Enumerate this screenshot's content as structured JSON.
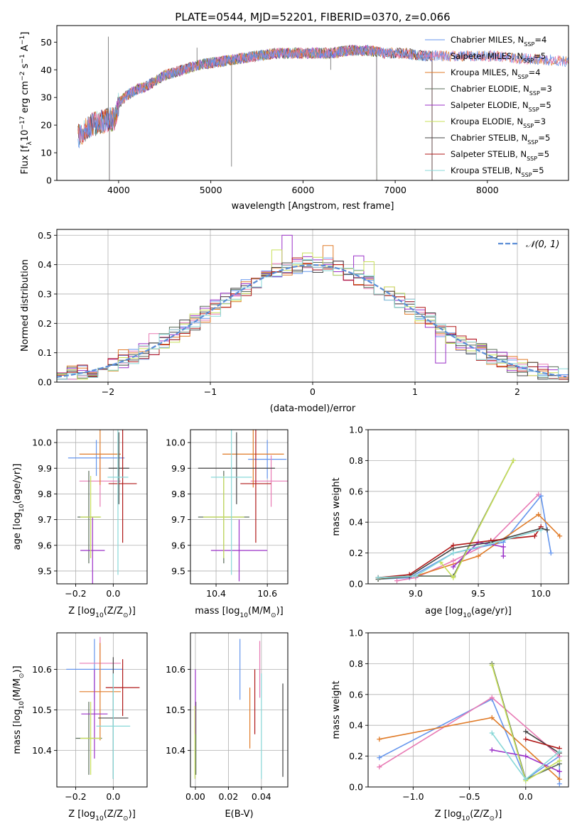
{
  "figure_title": "PLATE=0544, MJD=52201, FIBERID=0370, z=0.066",
  "colors": {
    "chab_miles": "#6495ed",
    "salp_miles": "#e87ab4",
    "krou_miles": "#e07b28",
    "chab_elodie": "#5a6d5a",
    "salp_elodie": "#9b30c8",
    "krou_elodie": "#c8e05a",
    "chab_stelib": "#444444",
    "salp_stelib": "#b01818",
    "krou_stelib": "#88d8d8",
    "normal": "#5b8dd6"
  },
  "chart_data": [
    {
      "id": "spectrum",
      "type": "line",
      "title": "PLATE=0544, MJD=52201, FIBERID=0370, z=0.066",
      "xlabel": "wavelength [Angstrom, rest frame]",
      "ylabel": "Flux [f",
      "ylabel_parts": [
        "Flux [f",
        "λ",
        "10",
        "−17",
        " erg cm",
        "−2",
        " s",
        "−1",
        " A",
        "−1",
        "]"
      ],
      "xlim": [
        3330,
        8880
      ],
      "ylim": [
        0,
        56
      ],
      "xticks": [
        4000,
        5000,
        6000,
        7000,
        8000
      ],
      "yticks": [
        0,
        10,
        20,
        30,
        40,
        50
      ],
      "grid": false,
      "legend_position": "top-right",
      "legend": [
        {
          "name": "Chabrier MILES, N",
          "n": "4",
          "key": "chab_miles"
        },
        {
          "name": "Salpeter MILES, N",
          "n": "5",
          "key": "salp_miles"
        },
        {
          "name": "Kroupa MILES, N",
          "n": "4",
          "key": "krou_miles"
        },
        {
          "name": "Chabrier ELODIE, N",
          "n": "3",
          "key": "chab_elodie"
        },
        {
          "name": "Salpeter ELODIE, N",
          "n": "5",
          "key": "salp_elodie"
        },
        {
          "name": "Kroupa ELODIE, N",
          "n": "3",
          "key": "krou_elodie"
        },
        {
          "name": "Chabrier STELIB, N",
          "n": "5",
          "key": "chab_stelib"
        },
        {
          "name": "Salpeter STELIB, N",
          "n": "5",
          "key": "salp_stelib"
        },
        {
          "name": "Kroupa STELIB, N",
          "n": "5",
          "key": "krou_stelib"
        }
      ],
      "legend_sub": "SSP",
      "continuum_x": [
        3560,
        3700,
        3800,
        3900,
        3960,
        4000,
        4100,
        4200,
        4300,
        4400,
        4500,
        4700,
        4900,
        5100,
        5300,
        5500,
        5700,
        5900,
        6100,
        6300,
        6500,
        6700,
        6900,
        7100,
        7300,
        7500,
        7700,
        7900,
        8100,
        8300,
        8500,
        8900
      ],
      "continuum_y": [
        16,
        20,
        21,
        22,
        22,
        28,
        31,
        33,
        34,
        36,
        38,
        40,
        42,
        43,
        44,
        45,
        46,
        46,
        46,
        46,
        47,
        47,
        46,
        46,
        45,
        45,
        45,
        45,
        45,
        44,
        44,
        43
      ],
      "spectrum_range": {
        "chab_miles": [
          3560,
          8880
        ],
        "salp_miles": [
          3560,
          8880
        ],
        "krou_miles": [
          3560,
          8880
        ],
        "chab_elodie": [
          3900,
          6800
        ],
        "salp_elodie": [
          3900,
          6800
        ],
        "krou_elodie": [
          3900,
          6800
        ],
        "chab_stelib": [
          3560,
          7400
        ],
        "salp_stelib": [
          3560,
          7400
        ],
        "krou_stelib": [
          3560,
          7400
        ]
      },
      "spikes": [
        [
          3890,
          52
        ],
        [
          5225,
          5
        ],
        [
          4850,
          48
        ],
        [
          6300,
          40
        ]
      ]
    },
    {
      "id": "residuals",
      "type": "histogram",
      "xlabel": "(data-model)/error",
      "ylabel": "Normed distribution",
      "xlim": [
        -2.5,
        2.5
      ],
      "ylim": [
        0,
        0.52
      ],
      "xticks": [
        -2,
        -1,
        0,
        1,
        2
      ],
      "xtick_labels": [
        "−2",
        "−1",
        "0",
        "1",
        "2"
      ],
      "yticks": [
        0.0,
        0.1,
        0.2,
        0.3,
        0.4,
        0.5
      ],
      "ytick_labels": [
        "0.0",
        "0.1",
        "0.2",
        "0.3",
        "0.4",
        "0.5"
      ],
      "grid": true,
      "bin_width": 0.1,
      "legend": {
        "label": "𝒩(0, 1)",
        "position": "top-right"
      },
      "hist_order": [
        "chab_miles",
        "salp_miles",
        "krou_miles",
        "chab_elodie",
        "salp_elodie",
        "krou_elodie",
        "chab_stelib",
        "salp_stelib",
        "krou_stelib"
      ],
      "highlights": [
        [
          -0.25,
          "salp_elodie",
          0.5
        ],
        [
          0.15,
          "krou_miles",
          0.465
        ],
        [
          0.55,
          "krou_elodie",
          0.41
        ],
        [
          -0.35,
          "krou_elodie",
          0.45
        ],
        [
          -0.05,
          "krou_elodie",
          0.44
        ],
        [
          0.45,
          "salp_elodie",
          0.43
        ],
        [
          1.45,
          "chab_miles",
          0.108
        ],
        [
          -1.85,
          "krou_miles",
          0.11
        ],
        [
          1.25,
          "salp_elodie",
          0.065
        ],
        [
          -1.55,
          "salp_miles",
          0.165
        ]
      ]
    },
    {
      "id": "age_vs_z",
      "type": "errorbar",
      "xlabel": "Z [log",
      "ylabel": "age  [log",
      "xlabel_parts": [
        "Z [log",
        "10",
        "(Z/Z",
        "⊙",
        ")]"
      ],
      "ylabel_parts": [
        "age  [log",
        "10",
        "(age/yr)]"
      ],
      "xlim": [
        -0.3,
        0.18
      ],
      "ylim": [
        9.45,
        10.05
      ],
      "xticks": [
        -0.2,
        0.0
      ],
      "xtick_labels": [
        "−0.2",
        "0.0"
      ],
      "yticks": [
        9.5,
        9.6,
        9.7,
        9.8,
        9.9,
        10.0
      ],
      "ytick_labels": [
        "9.5",
        "9.6",
        "9.7",
        "9.8",
        "9.9",
        "10.0"
      ],
      "grid": true,
      "points": [
        {
          "key": "chab_miles",
          "x": -0.09,
          "xerr": 0.15,
          "y": 9.94,
          "yerr": 0.07
        },
        {
          "key": "salp_miles",
          "x": -0.07,
          "xerr": 0.11,
          "y": 9.85,
          "yerr": 0.1
        },
        {
          "key": "krou_miles",
          "x": -0.07,
          "xerr": 0.11,
          "y": 9.955,
          "yerr": 0.12
        },
        {
          "key": "chab_elodie",
          "x": -0.13,
          "xerr": 0.06,
          "y": 9.71,
          "yerr": 0.18
        },
        {
          "key": "salp_elodie",
          "x": -0.11,
          "xerr": 0.065,
          "y": 9.58,
          "yerr": 0.13
        },
        {
          "key": "krou_elodie",
          "x": -0.12,
          "xerr": 0.055,
          "y": 9.71,
          "yerr": 0.16
        },
        {
          "key": "chab_stelib",
          "x": 0.03,
          "xerr": 0.055,
          "y": 9.9,
          "yerr": 0.14
        },
        {
          "key": "salp_stelib",
          "x": 0.05,
          "xerr": 0.075,
          "y": 9.84,
          "yerr": 0.23
        },
        {
          "key": "krou_stelib",
          "x": 0.025,
          "xerr": 0.055,
          "y": 9.865,
          "yerr": 0.38
        }
      ]
    },
    {
      "id": "age_vs_mass",
      "type": "errorbar",
      "xlabel": "mass [log",
      "xlabel_parts": [
        "mass [log",
        "10",
        "(M/M",
        "⊙",
        ")]"
      ],
      "xlim": [
        10.3,
        10.68
      ],
      "ylim": [
        9.45,
        10.05
      ],
      "xticks": [
        10.4,
        10.6
      ],
      "xtick_labels": [
        "10.4",
        "10.6"
      ],
      "yticks": [
        9.5,
        9.6,
        9.7,
        9.8,
        9.9,
        10.0
      ],
      "ytick_labels": [
        "9.5",
        "9.6",
        "9.7",
        "9.8",
        "9.9",
        "10.0"
      ],
      "grid": true,
      "points": [
        {
          "key": "chab_miles",
          "x": 10.6,
          "xerr": 0.075,
          "y": 9.935,
          "yerr": 0.075
        },
        {
          "key": "salp_miles",
          "x": 10.615,
          "xerr": 0.08,
          "y": 9.85,
          "yerr": 0.1
        },
        {
          "key": "krou_miles",
          "x": 10.545,
          "xerr": 0.12,
          "y": 9.955,
          "yerr": 0.13
        },
        {
          "key": "chab_elodie",
          "x": 10.43,
          "xerr": 0.1,
          "y": 9.71,
          "yerr": 0.18
        },
        {
          "key": "salp_elodie",
          "x": 10.49,
          "xerr": 0.11,
          "y": 9.58,
          "yerr": 0.12
        },
        {
          "key": "krou_elodie",
          "x": 10.43,
          "xerr": 0.08,
          "y": 9.71,
          "yerr": 0.16
        },
        {
          "key": "chab_stelib",
          "x": 10.48,
          "xerr": 0.15,
          "y": 9.9,
          "yerr": 0.14
        },
        {
          "key": "salp_stelib",
          "x": 10.555,
          "xerr": 0.06,
          "y": 9.84,
          "yerr": 0.23
        },
        {
          "key": "krou_stelib",
          "x": 10.46,
          "xerr": 0.08,
          "y": 9.865,
          "yerr": 0.38
        }
      ]
    },
    {
      "id": "weight_vs_age",
      "type": "line",
      "xlabel": "age  [log",
      "xlabel_parts": [
        "age  [log",
        "10",
        "(age/yr)]"
      ],
      "ylabel": "mass weight",
      "xlim": [
        8.62,
        10.22
      ],
      "ylim": [
        0,
        1.0
      ],
      "xticks": [
        9.0,
        9.5,
        10.0
      ],
      "xtick_labels": [
        "9.0",
        "9.5",
        "10.0"
      ],
      "yticks": [
        0.0,
        0.2,
        0.4,
        0.6,
        0.8,
        1.0
      ],
      "ytick_labels": [
        "0.0",
        "0.2",
        "0.4",
        "0.6",
        "0.8",
        "1.0"
      ],
      "grid": true,
      "series": [
        {
          "key": "chab_miles",
          "x": [
            8.7,
            8.95,
            9.3,
            9.7,
            10.0,
            10.08
          ],
          "y": [
            0.03,
            0.04,
            0.2,
            0.27,
            0.57,
            0.2
          ]
        },
        {
          "key": "salp_miles",
          "x": [
            8.85,
            9.0,
            9.3,
            9.6,
            9.98
          ],
          "y": [
            0.02,
            0.04,
            0.15,
            0.27,
            0.58
          ]
        },
        {
          "key": "krou_miles",
          "x": [
            8.7,
            9.0,
            9.5,
            9.98,
            10.15
          ],
          "y": [
            0.03,
            0.05,
            0.18,
            0.45,
            0.31
          ]
        },
        {
          "key": "chab_elodie",
          "x": [
            8.7,
            9.0,
            9.3,
            9.78
          ],
          "y": [
            0.03,
            0.05,
            0.05,
            0.8
          ]
        },
        {
          "key": "salp_elodie",
          "x": [
            9.3,
            9.5,
            9.7,
            9.7
          ],
          "y": [
            0.11,
            0.27,
            0.24,
            0.18
          ]
        },
        {
          "key": "krou_elodie",
          "x": [
            9.2,
            9.3,
            9.78
          ],
          "y": [
            0.14,
            0.04,
            0.8
          ]
        },
        {
          "key": "chab_stelib",
          "x": [
            8.7,
            8.95,
            9.3,
            9.6,
            10.0,
            10.05
          ],
          "y": [
            0.04,
            0.05,
            0.23,
            0.27,
            0.36,
            0.35
          ]
        },
        {
          "key": "salp_stelib",
          "x": [
            8.7,
            8.95,
            9.3,
            9.6,
            9.95,
            10.0
          ],
          "y": [
            0.04,
            0.06,
            0.25,
            0.28,
            0.31,
            0.37
          ]
        },
        {
          "key": "krou_stelib",
          "x": [
            8.7,
            9.0,
            9.3,
            9.6,
            10.0
          ],
          "y": [
            0.04,
            0.05,
            0.2,
            0.26,
            0.35
          ]
        }
      ]
    },
    {
      "id": "mass_vs_z",
      "type": "errorbar",
      "xlabel": "Z [log",
      "xlabel_parts": [
        "Z [log",
        "10",
        "(Z/Z",
        "⊙",
        ")]"
      ],
      "ylabel": "mass [log",
      "ylabel_parts": [
        "mass [log",
        "10",
        "(M/M",
        "⊙",
        ")]"
      ],
      "xlim": [
        -0.3,
        0.18
      ],
      "ylim": [
        10.31,
        10.69
      ],
      "xticks": [
        -0.2,
        0.0
      ],
      "xtick_labels": [
        "−0.2",
        "0.0"
      ],
      "yticks": [
        10.4,
        10.5,
        10.6
      ],
      "ytick_labels": [
        "10.4",
        "10.5",
        "10.6"
      ],
      "grid": true,
      "points": [
        {
          "key": "chab_miles",
          "x": -0.1,
          "xerr": 0.15,
          "y": 10.6,
          "yerr": 0.075
        },
        {
          "key": "salp_miles",
          "x": -0.07,
          "xerr": 0.11,
          "y": 10.615,
          "yerr": 0.065
        },
        {
          "key": "krou_miles",
          "x": -0.07,
          "xerr": 0.11,
          "y": 10.545,
          "yerr": 0.12
        },
        {
          "key": "chab_elodie",
          "x": -0.13,
          "xerr": 0.07,
          "y": 10.43,
          "yerr": 0.09
        },
        {
          "key": "salp_elodie",
          "x": -0.1,
          "xerr": 0.07,
          "y": 10.49,
          "yerr": 0.11
        },
        {
          "key": "krou_elodie",
          "x": -0.12,
          "xerr": 0.055,
          "y": 10.43,
          "yerr": 0.09
        },
        {
          "key": "chab_stelib",
          "x": 0.0,
          "xerr": 0.08,
          "y": 10.48,
          "yerr": 0.15
        },
        {
          "key": "salp_stelib",
          "x": 0.05,
          "xerr": 0.09,
          "y": 10.555,
          "yerr": 0.07
        },
        {
          "key": "krou_stelib",
          "x": 0.0,
          "xerr": 0.09,
          "y": 10.46,
          "yerr": 0.13
        }
      ]
    },
    {
      "id": "mass_vs_ebv",
      "type": "errorbar",
      "xlabel": "E(B-V)",
      "xlim": [
        -0.003,
        0.056
      ],
      "ylim": [
        10.31,
        10.69
      ],
      "xticks": [
        0.0,
        0.02,
        0.04
      ],
      "xtick_labels": [
        "0.00",
        "0.02",
        "0.04"
      ],
      "yticks": [
        10.4,
        10.5,
        10.6
      ],
      "ytick_labels": [
        "10.4",
        "10.5",
        "10.6"
      ],
      "grid": true,
      "points": [
        {
          "key": "chab_miles",
          "x": 0.027,
          "xerr": 0,
          "y": 10.6,
          "yerr": 0.075
        },
        {
          "key": "salp_miles",
          "x": 0.039,
          "xerr": 0,
          "y": 10.6,
          "yerr": 0.07
        },
        {
          "key": "krou_miles",
          "x": 0.033,
          "xerr": 0,
          "y": 10.48,
          "yerr": 0.075
        },
        {
          "key": "chab_elodie",
          "x": 0.0003,
          "xerr": 0,
          "y": 10.43,
          "yerr": 0.09
        },
        {
          "key": "salp_elodie",
          "x": 0.0,
          "xerr": 0,
          "y": 10.52,
          "yerr": 0.08
        },
        {
          "key": "krou_elodie",
          "x": -0.0003,
          "xerr": 0,
          "y": 10.42,
          "yerr": 0.09
        },
        {
          "key": "chab_stelib",
          "x": 0.053,
          "xerr": 0,
          "y": 10.45,
          "yerr": 0.115
        },
        {
          "key": "salp_stelib",
          "x": 0.036,
          "xerr": 0,
          "y": 10.52,
          "yerr": 0.08
        },
        {
          "key": "krou_stelib",
          "x": 0.04,
          "xerr": 0,
          "y": 10.46,
          "yerr": 0.13
        }
      ]
    },
    {
      "id": "weight_vs_z",
      "type": "line",
      "xlabel": "Z [log",
      "xlabel_parts": [
        "Z [log",
        "10",
        "(Z/Z",
        "⊙",
        ")]"
      ],
      "ylabel": "mass weight",
      "xlim": [
        -1.4,
        0.38
      ],
      "ylim": [
        0,
        1.0
      ],
      "xticks": [
        -1.0,
        -0.5,
        0.0
      ],
      "xtick_labels": [
        "−1.0",
        "−0.5",
        "0.0"
      ],
      "yticks": [
        0.0,
        0.2,
        0.4,
        0.6,
        0.8,
        1.0
      ],
      "ytick_labels": [
        "0.0",
        "0.2",
        "0.4",
        "0.6",
        "0.8",
        "1.0"
      ],
      "grid": true,
      "series": [
        {
          "key": "chab_miles",
          "x": [
            -1.3,
            -0.3,
            0.0,
            0.3,
            0.3
          ],
          "y": [
            0.19,
            0.57,
            0.05,
            0.2,
            0.02
          ]
        },
        {
          "key": "salp_miles",
          "x": [
            -1.3,
            -0.3,
            0.3
          ],
          "y": [
            0.13,
            0.58,
            0.2
          ]
        },
        {
          "key": "krou_miles",
          "x": [
            -1.3,
            -0.3,
            0.3
          ],
          "y": [
            0.31,
            0.45,
            0.05
          ]
        },
        {
          "key": "chab_elodie",
          "x": [
            -0.3,
            0.0,
            0.3
          ],
          "y": [
            0.8,
            0.05,
            0.15
          ]
        },
        {
          "key": "salp_elodie",
          "x": [
            -0.3,
            0.0,
            0.3
          ],
          "y": [
            0.24,
            0.2,
            0.1
          ]
        },
        {
          "key": "krou_elodie",
          "x": [
            -0.3,
            0.0,
            0.3
          ],
          "y": [
            0.79,
            0.04,
            0.17
          ]
        },
        {
          "key": "chab_stelib",
          "x": [
            0.0,
            0.3
          ],
          "y": [
            0.36,
            0.22
          ]
        },
        {
          "key": "salp_stelib",
          "x": [
            0.0,
            0.3
          ],
          "y": [
            0.31,
            0.25
          ]
        },
        {
          "key": "krou_stelib",
          "x": [
            -0.3,
            0.0,
            0.3
          ],
          "y": [
            0.35,
            0.05,
            0.23
          ]
        }
      ]
    }
  ]
}
